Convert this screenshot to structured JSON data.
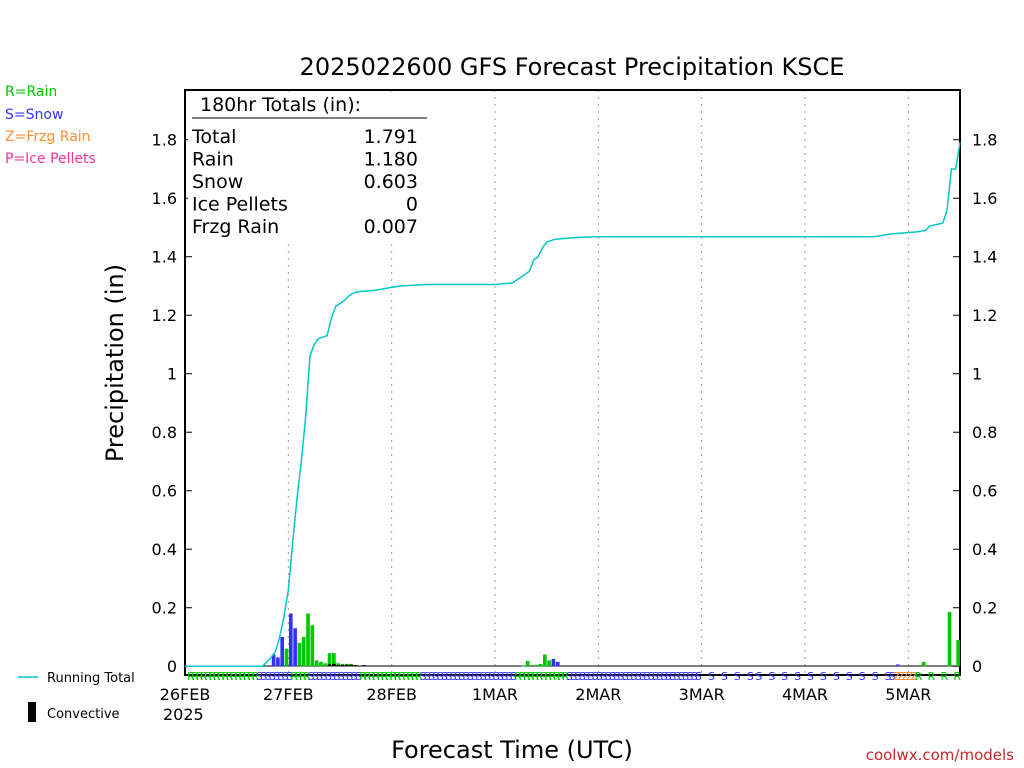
{
  "chart_data": {
    "type": "bar",
    "title": "2025022600 GFS Forecast Precipitation KSCE",
    "xlabel": "Forecast Time (UTC)",
    "ylabel": "Precipitation (in)",
    "ylim": [
      -0.03,
      1.97
    ],
    "y_ticks": [
      "0",
      "0.2",
      "0.4",
      "0.6",
      "0.8",
      "1",
      "1.2",
      "1.4",
      "1.6",
      "1.8"
    ],
    "x_tick_labels": [
      "26FEB",
      "27FEB",
      "28FEB",
      "1MAR",
      "2MAR",
      "3MAR",
      "4MAR",
      "5MAR"
    ],
    "x_year_label": "2025",
    "grid": "vertical dotted at day boundaries",
    "totals_box": {
      "header": "180hr Totals (in):",
      "rows": [
        {
          "label": "Total",
          "value": "1.791"
        },
        {
          "label": "Rain",
          "value": "1.180"
        },
        {
          "label": "Snow",
          "value": "0.603"
        },
        {
          "label": "Ice Pellets",
          "value": "0"
        },
        {
          "label": "Frzg Rain",
          "value": "0.007"
        }
      ]
    },
    "type_legend": [
      {
        "label": "R=Rain",
        "color": "#00c800"
      },
      {
        "label": "S=Snow",
        "color": "#3232ff"
      },
      {
        "label": "Z=Frzg Rain",
        "color": "#ff8c32"
      },
      {
        "label": "P=Ice Pellets",
        "color": "#ff3296"
      }
    ],
    "line_legend": [
      {
        "label": "Running Total",
        "color": "#00c8c8"
      },
      {
        "label": "Convective",
        "color": "#000000"
      }
    ],
    "credit": "coolwx.com/models",
    "running_total": [
      [
        0,
        0
      ],
      [
        18,
        0
      ],
      [
        20,
        0.03
      ],
      [
        21,
        0.05
      ],
      [
        22,
        0.1
      ],
      [
        23,
        0.17
      ],
      [
        24,
        0.26
      ],
      [
        25,
        0.42
      ],
      [
        26,
        0.57
      ],
      [
        27,
        0.7
      ],
      [
        28,
        0.85
      ],
      [
        29,
        1.06
      ],
      [
        30,
        1.1
      ],
      [
        31,
        1.12
      ],
      [
        33,
        1.13
      ],
      [
        34,
        1.19
      ],
      [
        35,
        1.23
      ],
      [
        36,
        1.24
      ],
      [
        37,
        1.25
      ],
      [
        38,
        1.265
      ],
      [
        39,
        1.275
      ],
      [
        40,
        1.28
      ],
      [
        44,
        1.285
      ],
      [
        46,
        1.29
      ],
      [
        48,
        1.295
      ],
      [
        50,
        1.3
      ],
      [
        56,
        1.305
      ],
      [
        72,
        1.305
      ],
      [
        76,
        1.31
      ],
      [
        78,
        1.33
      ],
      [
        80,
        1.35
      ],
      [
        81,
        1.39
      ],
      [
        82,
        1.4
      ],
      [
        83,
        1.43
      ],
      [
        84,
        1.45
      ],
      [
        86,
        1.46
      ],
      [
        90,
        1.465
      ],
      [
        95,
        1.468
      ],
      [
        160,
        1.468
      ],
      [
        164,
        1.478
      ],
      [
        170,
        1.485
      ],
      [
        172,
        1.49
      ],
      [
        173,
        1.505
      ],
      [
        176,
        1.515
      ],
      [
        177,
        1.56
      ],
      [
        178,
        1.7
      ],
      [
        179,
        1.7
      ],
      [
        180,
        1.791
      ]
    ],
    "bars": [
      {
        "h": 21,
        "v": 0.04,
        "type": "snow"
      },
      {
        "h": 22,
        "v": 0.03,
        "type": "snow"
      },
      {
        "h": 23,
        "v": 0.1,
        "type": "snow"
      },
      {
        "h": 24,
        "v": 0.06,
        "type": "rain"
      },
      {
        "h": 25,
        "v": 0.18,
        "type": "snow"
      },
      {
        "h": 26,
        "v": 0.13,
        "type": "snow"
      },
      {
        "h": 27,
        "v": 0.08,
        "type": "rain"
      },
      {
        "h": 28,
        "v": 0.1,
        "type": "rain"
      },
      {
        "h": 29,
        "v": 0.18,
        "type": "rain"
      },
      {
        "h": 30,
        "v": 0.14,
        "type": "rain"
      },
      {
        "h": 31,
        "v": 0.02,
        "type": "rain"
      },
      {
        "h": 32,
        "v": 0.015,
        "type": "rain"
      },
      {
        "h": 33,
        "v": 0.01,
        "type": "rain"
      },
      {
        "h": 34,
        "v": 0.045,
        "type": "rain"
      },
      {
        "h": 35,
        "v": 0.045,
        "type": "rain"
      },
      {
        "h": 36,
        "v": 0.01,
        "type": "rain"
      },
      {
        "h": 37,
        "v": 0.006,
        "type": "rain"
      },
      {
        "h": 38,
        "v": 0.008,
        "type": "rain"
      },
      {
        "h": 39,
        "v": 0.008,
        "type": "rain"
      },
      {
        "h": 42,
        "v": 0.004,
        "type": "snow"
      },
      {
        "h": 79,
        "v": 0.003,
        "type": "rain"
      },
      {
        "h": 80,
        "v": 0.018,
        "type": "rain"
      },
      {
        "h": 82,
        "v": 0.005,
        "type": "rain"
      },
      {
        "h": 83,
        "v": 0.008,
        "type": "rain"
      },
      {
        "h": 84,
        "v": 0.04,
        "type": "rain"
      },
      {
        "h": 85,
        "v": 0.02,
        "type": "rain"
      },
      {
        "h": 86,
        "v": 0.025,
        "type": "snow"
      },
      {
        "h": 87,
        "v": 0.015,
        "type": "snow"
      },
      {
        "h": 166,
        "v": 0.006,
        "type": "snow"
      },
      {
        "h": 172,
        "v": 0.015,
        "type": "rain"
      },
      {
        "h": 178,
        "v": 0.185,
        "type": "rain"
      },
      {
        "h": 180,
        "v": 0.09,
        "type": "rain"
      }
    ],
    "convective": [
      {
        "h": 34,
        "v": 0.006
      },
      {
        "h": 35,
        "v": 0.008
      },
      {
        "h": 36,
        "v": 0.004
      },
      {
        "h": 37,
        "v": 0.006
      },
      {
        "h": 38,
        "v": 0.005
      },
      {
        "h": 39,
        "v": 0.005
      },
      {
        "h": 40,
        "v": 0.004
      },
      {
        "h": 42,
        "v": 0.003
      }
    ],
    "type_codes": [
      {
        "from": 0,
        "to": 16,
        "code": "R"
      },
      {
        "from": 16,
        "to": 24,
        "code": "S"
      },
      {
        "from": 24,
        "to": 28,
        "code": "R"
      },
      {
        "from": 28,
        "to": 40,
        "code": "S"
      },
      {
        "from": 40,
        "to": 54,
        "code": "R"
      },
      {
        "from": 54,
        "to": 76,
        "code": "S"
      },
      {
        "from": 76,
        "to": 88,
        "code": "R"
      },
      {
        "from": 88,
        "to": 118,
        "code": "S"
      },
      {
        "from": 118,
        "to": 132,
        "code": "S",
        "sparse": true
      },
      {
        "from": 132,
        "to": 162,
        "code": "S",
        "sparse": true
      },
      {
        "from": 162,
        "to": 164,
        "code": "S"
      },
      {
        "from": 164,
        "to": 169,
        "code": "Z"
      },
      {
        "from": 169,
        "to": 180,
        "code": "R",
        "sparse": true
      }
    ]
  }
}
